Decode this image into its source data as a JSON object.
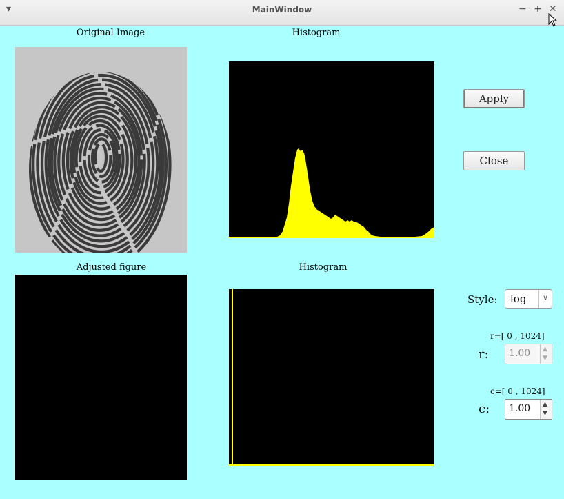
{
  "window": {
    "title": "MainWindow"
  },
  "captions": {
    "original": "Original Image",
    "histogram_top": "Histogram",
    "adjusted": "Adjusted figure",
    "histogram_bottom": "Histogram"
  },
  "buttons": {
    "apply": "Apply",
    "close": "Close"
  },
  "controls": {
    "style_label": "Style:",
    "style_value": "log",
    "r_range": "r=[ 0 ,   1024]",
    "r_label": "r:",
    "r_value": "1.00",
    "c_range": "c=[ 0 ,   1024]",
    "c_label": "c:",
    "c_value": "1.00"
  },
  "colors": {
    "background": "#aaffff",
    "histogram_fill": "#ffff00",
    "panel": "#000000"
  },
  "icons": {
    "menu": "chevron-down-icon",
    "minimize": "minimize-icon",
    "maximize": "maximize-icon",
    "close": "close-icon"
  }
}
